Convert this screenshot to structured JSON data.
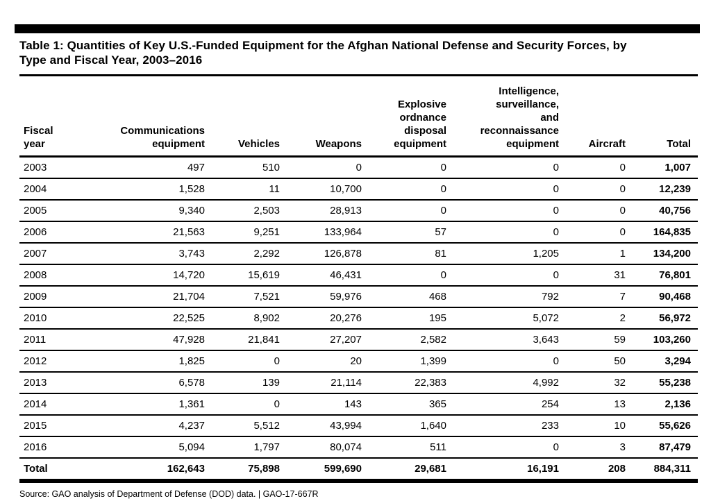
{
  "page": {
    "title": "Table 1: Quantities of Key U.S.-Funded Equipment for the Afghan National Defense and Security Forces, by\nType and Fiscal Year, 2003–2016",
    "source_line": "Source: GAO analysis of Department of Defense (DOD) data.  |  GAO-17-667R"
  },
  "table": {
    "columns": [
      "Fiscal\nyear",
      "Communications\nequipment",
      "Vehicles",
      "Weapons",
      "Explosive\nordnance\ndisposal\nequipment",
      "Intelligence,\nsurveillance,\nand\nreconnaissance\nequipment",
      "Aircraft",
      "Total"
    ],
    "rows": [
      [
        "2003",
        "497",
        "510",
        "0",
        "0",
        "0",
        "0",
        "1,007"
      ],
      [
        "2004",
        "1,528",
        "11",
        "10,700",
        "0",
        "0",
        "0",
        "12,239"
      ],
      [
        "2005",
        "9,340",
        "2,503",
        "28,913",
        "0",
        "0",
        "0",
        "40,756"
      ],
      [
        "2006",
        "21,563",
        "9,251",
        "133,964",
        "57",
        "0",
        "0",
        "164,835"
      ],
      [
        "2007",
        "3,743",
        "2,292",
        "126,878",
        "81",
        "1,205",
        "1",
        "134,200"
      ],
      [
        "2008",
        "14,720",
        "15,619",
        "46,431",
        "0",
        "0",
        "31",
        "76,801"
      ],
      [
        "2009",
        "21,704",
        "7,521",
        "59,976",
        "468",
        "792",
        "7",
        "90,468"
      ],
      [
        "2010",
        "22,525",
        "8,902",
        "20,276",
        "195",
        "5,072",
        "2",
        "56,972"
      ],
      [
        "2011",
        "47,928",
        "21,841",
        "27,207",
        "2,582",
        "3,643",
        "59",
        "103,260"
      ],
      [
        "2012",
        "1,825",
        "0",
        "20",
        "1,399",
        "0",
        "50",
        "3,294"
      ],
      [
        "2013",
        "6,578",
        "139",
        "21,114",
        "22,383",
        "4,992",
        "32",
        "55,238"
      ],
      [
        "2014",
        "1,361",
        "0",
        "143",
        "365",
        "254",
        "13",
        "2,136"
      ],
      [
        "2015",
        "4,237",
        "5,512",
        "43,994",
        "1,640",
        "233",
        "10",
        "55,626"
      ],
      [
        "2016",
        "5,094",
        "1,797",
        "80,074",
        "511",
        "0",
        "3",
        "87,479"
      ]
    ],
    "total_row": [
      "Total",
      "162,643",
      "75,898",
      "599,690",
      "29,681",
      "16,191",
      "208",
      "884,311"
    ]
  }
}
